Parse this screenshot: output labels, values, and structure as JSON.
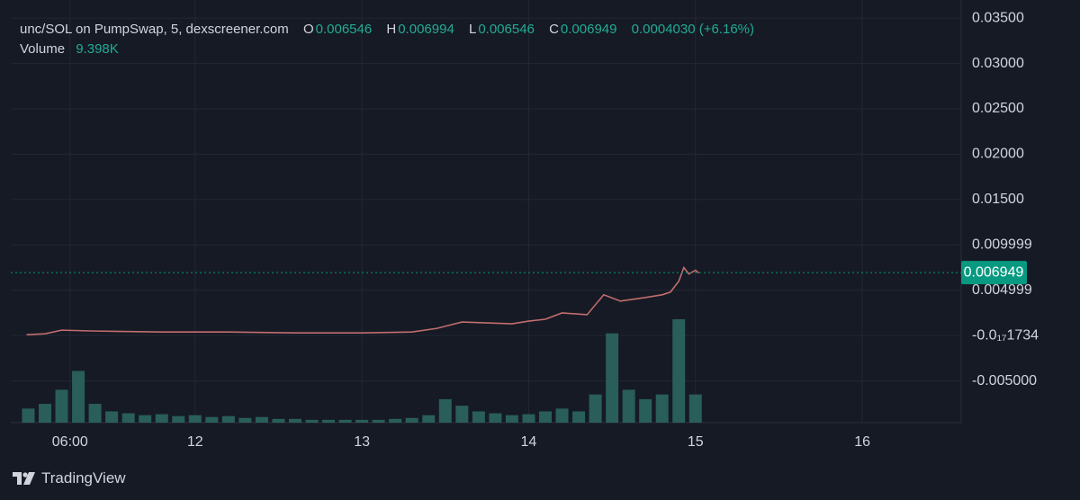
{
  "chart_data": {
    "type": "line",
    "symbol": "unc/SOL on PumpSwap, 5, dexscreener.com",
    "ohlc": {
      "O": "O",
      "open": 0.006546,
      "H": "H",
      "high": 0.006994,
      "L": "L",
      "low": 0.006546,
      "C": "C",
      "close": 0.006949,
      "change": "0.0004030 (+6.16%)"
    },
    "volume_label": "Volume",
    "volume_value": "9.398K",
    "brand": "TradingView",
    "price_line": 0.006949,
    "xlim": [
      10.895,
      16.593
    ],
    "xticks": [
      {
        "value": 11.25,
        "label": "06:00"
      },
      12,
      13,
      14,
      15,
      16
    ],
    "ylim": [
      -0.0096,
      0.037
    ],
    "yticks": [
      {
        "value": -0.005,
        "label": "-0.005000"
      },
      {
        "value": -1.734e-18,
        "label": "-0.0₁₇1734"
      },
      {
        "value": 0.004999,
        "label": "0.004999"
      },
      {
        "value": 0.009999,
        "label": "0.009999"
      },
      {
        "value": 0.015,
        "label": "0.01500"
      },
      {
        "value": 0.02,
        "label": "0.02000"
      },
      {
        "value": 0.025,
        "label": "0.02500"
      },
      {
        "value": 0.03,
        "label": "0.03000"
      },
      {
        "value": 0.035,
        "label": "0.03500"
      }
    ],
    "grid": true,
    "series": [
      {
        "name": "unc/SOL",
        "color": "#c26d6d",
        "x": [
          10.99,
          11.1,
          11.2,
          11.4,
          11.8,
          12.2,
          12.6,
          13.0,
          13.3,
          13.45,
          13.6,
          13.75,
          13.9,
          14.0,
          14.1,
          14.2,
          14.35,
          14.45,
          14.55,
          14.7,
          14.8,
          14.85,
          14.9,
          14.93,
          14.96,
          15.0,
          15.02
        ],
        "values": [
          0.0001,
          0.0002,
          0.0006,
          0.0005,
          0.0004,
          0.0004,
          0.0003,
          0.0003,
          0.0004,
          0.0008,
          0.0015,
          0.0014,
          0.0013,
          0.0016,
          0.0018,
          0.0025,
          0.0023,
          0.0045,
          0.0038,
          0.0042,
          0.0045,
          0.0048,
          0.006,
          0.0075,
          0.0068,
          0.0072,
          0.0069
        ]
      }
    ],
    "volume": {
      "color": "#2d6b64",
      "x": [
        11.0,
        11.1,
        11.2,
        11.3,
        11.4,
        11.5,
        11.6,
        11.7,
        11.8,
        11.9,
        12.0,
        12.1,
        12.2,
        12.3,
        12.4,
        12.5,
        12.6,
        12.7,
        12.8,
        12.9,
        13.0,
        13.1,
        13.2,
        13.3,
        13.4,
        13.5,
        13.6,
        13.7,
        13.8,
        13.9,
        14.0,
        14.1,
        14.2,
        14.3,
        14.4,
        14.5,
        14.6,
        14.7,
        14.8,
        14.9,
        15.0
      ],
      "values": [
        15,
        20,
        35,
        55,
        20,
        12,
        10,
        8,
        9,
        7,
        8,
        6,
        7,
        5,
        6,
        4,
        4,
        3,
        3,
        3,
        3,
        3,
        4,
        5,
        8,
        25,
        18,
        12,
        10,
        8,
        9,
        12,
        15,
        12,
        30,
        95,
        35,
        25,
        30,
        110,
        30
      ]
    }
  }
}
